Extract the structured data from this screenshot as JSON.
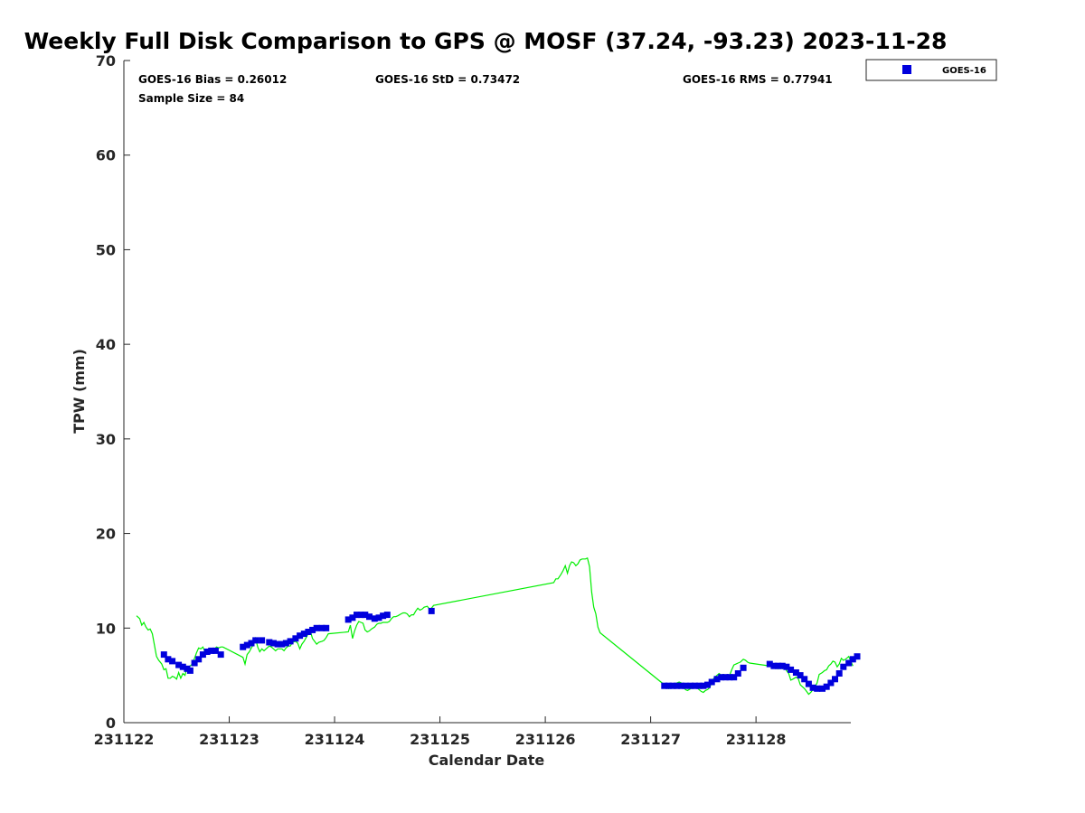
{
  "chart_data": {
    "type": "scatter",
    "title": "Weekly Full Disk Comparison to GPS @ MOSF (37.24, -93.23) 2023-11-28",
    "xlabel": "Calendar Date",
    "ylabel": "TPW (mm)",
    "xlim": [
      231122,
      231128.9
    ],
    "ylim": [
      0,
      70
    ],
    "yticks": [
      "0",
      "10",
      "20",
      "30",
      "40",
      "50",
      "60",
      "70"
    ],
    "xticks": [
      "231122",
      "231123",
      "231124",
      "231125",
      "231126",
      "231127",
      "231128"
    ],
    "grid": false,
    "legend_position": "top-right",
    "stats": {
      "bias": "GOES-16 Bias = 0.26012",
      "std": "GOES-16 StD = 0.73472",
      "rms": "GOES-16 RMS = 0.77941",
      "sample": "Sample Size = 84"
    },
    "series": [
      {
        "name": "GOES-16",
        "kind": "scatter",
        "marker": "square",
        "color": "#0000dd",
        "x": [
          231122.38,
          231122.42,
          231122.46,
          231122.52,
          231122.56,
          231122.6,
          231122.63,
          231122.67,
          231122.71,
          231122.75,
          231122.79,
          231122.83,
          231122.87,
          231122.92,
          231123.13,
          231123.17,
          231123.21,
          231123.25,
          231123.31,
          231123.38,
          231123.42,
          231123.46,
          231123.5,
          231123.54,
          231123.58,
          231123.63,
          231123.67,
          231123.71,
          231123.75,
          231123.79,
          231123.83,
          231123.88,
          231123.92,
          231124.13,
          231124.17,
          231124.21,
          231124.25,
          231124.29,
          231124.33,
          231124.38,
          231124.42,
          231124.46,
          231124.5,
          231124.92,
          231127.13,
          231127.17,
          231127.21,
          231127.25,
          231127.29,
          231127.33,
          231127.38,
          231127.42,
          231127.46,
          231127.5,
          231127.54,
          231127.58,
          231127.63,
          231127.67,
          231127.71,
          231127.75,
          231127.79,
          231127.83,
          231127.88,
          231128.13,
          231128.17,
          231128.21,
          231128.25,
          231128.29,
          231128.33,
          231128.38,
          231128.42,
          231128.46,
          231128.5,
          231128.54,
          231128.58,
          231128.63,
          231128.67,
          231128.71,
          231128.75,
          231128.79,
          231128.83,
          231128.88,
          231128.92,
          231128.96
        ],
        "y": [
          7.2,
          6.7,
          6.5,
          6.1,
          5.9,
          5.7,
          5.5,
          6.3,
          6.7,
          7.2,
          7.5,
          7.6,
          7.6,
          7.2,
          8.0,
          8.2,
          8.4,
          8.7,
          8.7,
          8.5,
          8.4,
          8.3,
          8.3,
          8.4,
          8.6,
          8.9,
          9.2,
          9.4,
          9.6,
          9.8,
          10.0,
          10.0,
          10.0,
          10.9,
          11.1,
          11.4,
          11.4,
          11.4,
          11.2,
          11.0,
          11.1,
          11.3,
          11.4,
          11.8,
          3.9,
          3.9,
          3.9,
          3.9,
          3.9,
          3.9,
          3.9,
          3.9,
          3.9,
          3.9,
          4.0,
          4.3,
          4.6,
          4.8,
          4.8,
          4.8,
          4.8,
          5.2,
          5.8,
          6.2,
          6.0,
          6.0,
          6.0,
          5.9,
          5.6,
          5.3,
          5.0,
          4.6,
          4.1,
          3.7,
          3.6,
          3.6,
          3.8,
          4.2,
          4.6,
          5.2,
          5.9,
          6.3,
          6.7,
          7.0
        ]
      },
      {
        "name": "",
        "kind": "line",
        "color": "#00ee00",
        "x": [
          231122.12,
          231122.15,
          231122.17,
          231122.19,
          231122.21,
          231122.23,
          231122.25,
          231122.27,
          231122.29,
          231122.31,
          231122.33,
          231122.36,
          231122.38,
          231122.4,
          231122.42,
          231122.44,
          231122.46,
          231122.48,
          231122.5,
          231122.52,
          231122.54,
          231122.56,
          231122.58,
          231122.6,
          231122.63,
          231122.65,
          231122.67,
          231122.69,
          231122.71,
          231122.73,
          231122.75,
          231122.77,
          231122.79,
          231122.81,
          231122.83,
          231122.85,
          231122.88,
          231122.9,
          231122.92,
          231122.94,
          231123.13,
          231123.15,
          231123.17,
          231123.19,
          231123.21,
          231123.23,
          231123.25,
          231123.27,
          231123.29,
          231123.31,
          231123.33,
          231123.35,
          231123.38,
          231123.4,
          231123.42,
          231123.44,
          231123.46,
          231123.48,
          231123.5,
          231123.52,
          231123.54,
          231123.56,
          231123.58,
          231123.6,
          231123.63,
          231123.65,
          231123.67,
          231123.69,
          231123.71,
          231123.73,
          231123.75,
          231123.77,
          231123.79,
          231123.81,
          231123.83,
          231123.85,
          231123.88,
          231123.9,
          231123.92,
          231123.94,
          231124.13,
          231124.15,
          231124.17,
          231124.19,
          231124.21,
          231124.23,
          231124.25,
          231124.27,
          231124.29,
          231124.31,
          231124.33,
          231124.35,
          231124.38,
          231124.4,
          231124.42,
          231124.44,
          231124.46,
          231124.48,
          231124.5,
          231124.52,
          231124.54,
          231124.56,
          231124.58,
          231124.6,
          231124.63,
          231124.65,
          231124.67,
          231124.69,
          231124.71,
          231124.73,
          231124.75,
          231124.77,
          231124.79,
          231124.81,
          231124.83,
          231124.85,
          231124.88,
          231124.9,
          231124.92,
          231124.94,
          231126.08,
          231126.1,
          231126.12,
          231126.15,
          231126.17,
          231126.19,
          231126.21,
          231126.23,
          231126.25,
          231126.27,
          231126.29,
          231126.31,
          231126.33,
          231126.35,
          231126.38,
          231126.4,
          231126.42,
          231126.44,
          231126.46,
          231126.48,
          231126.5,
          231126.52,
          231127.13,
          231127.15,
          231127.17,
          231127.19,
          231127.21,
          231127.23,
          231127.25,
          231127.27,
          231127.29,
          231127.31,
          231127.33,
          231127.35,
          231127.38,
          231127.4,
          231127.42,
          231127.44,
          231127.46,
          231127.48,
          231127.5,
          231127.52,
          231127.54,
          231127.56,
          231127.58,
          231127.6,
          231127.63,
          231127.65,
          231127.67,
          231127.69,
          231127.71,
          231127.73,
          231127.75,
          231127.77,
          231127.79,
          231127.81,
          231127.83,
          231127.85,
          231127.88,
          231127.9,
          231127.92,
          231127.94,
          231128.13,
          231128.15,
          231128.17,
          231128.19,
          231128.21,
          231128.23,
          231128.25,
          231128.27,
          231128.29,
          231128.31,
          231128.33,
          231128.35,
          231128.38,
          231128.4,
          231128.42,
          231128.44,
          231128.46,
          231128.48,
          231128.5,
          231128.52,
          231128.54,
          231128.56,
          231128.58,
          231128.6,
          231128.63,
          231128.65,
          231128.67,
          231128.69,
          231128.71,
          231128.73,
          231128.75,
          231128.77,
          231128.79,
          231128.81,
          231128.83,
          231128.85,
          231128.88,
          231128.9,
          231128.92
        ],
        "y": [
          11.3,
          11.0,
          10.3,
          10.6,
          10.1,
          9.8,
          9.9,
          9.4,
          8.2,
          7.0,
          6.6,
          6.2,
          5.6,
          5.7,
          4.7,
          4.7,
          4.9,
          4.8,
          4.6,
          5.3,
          4.7,
          5.2,
          5.0,
          5.9,
          6.0,
          6.2,
          6.8,
          7.4,
          7.9,
          7.8,
          8.0,
          7.5,
          7.7,
          7.6,
          7.5,
          7.7,
          8.0,
          7.9,
          8.0,
          8.0,
          6.9,
          6.2,
          7.2,
          7.5,
          7.9,
          8.3,
          8.9,
          8.0,
          7.5,
          7.8,
          7.6,
          7.8,
          8.1,
          8.0,
          7.8,
          7.6,
          7.8,
          7.8,
          7.8,
          7.6,
          7.9,
          8.1,
          8.1,
          8.5,
          8.6,
          8.4,
          7.8,
          8.3,
          8.6,
          9.0,
          9.4,
          9.7,
          8.9,
          8.6,
          8.3,
          8.5,
          8.6,
          8.7,
          9.0,
          9.4,
          9.6,
          10.3,
          8.9,
          9.7,
          10.3,
          10.7,
          10.6,
          10.5,
          9.8,
          9.6,
          9.7,
          9.9,
          10.1,
          10.4,
          10.5,
          10.5,
          10.6,
          10.6,
          10.6,
          10.7,
          11.0,
          11.2,
          11.2,
          11.3,
          11.5,
          11.6,
          11.6,
          11.5,
          11.2,
          11.4,
          11.4,
          11.8,
          12.1,
          11.9,
          12.0,
          12.2,
          12.3,
          12.0,
          12.1,
          12.4,
          14.8,
          15.2,
          15.2,
          15.7,
          16.1,
          16.6,
          15.8,
          16.6,
          17.0,
          16.9,
          16.6,
          16.8,
          17.2,
          17.3,
          17.3,
          17.4,
          16.5,
          13.8,
          12.2,
          11.5,
          10.1,
          9.5,
          4.0,
          3.7,
          3.6,
          3.7,
          3.9,
          4.0,
          4.2,
          4.3,
          4.2,
          3.8,
          3.5,
          3.4,
          3.6,
          3.7,
          3.9,
          3.7,
          3.5,
          3.3,
          3.2,
          3.4,
          3.5,
          3.7,
          4.3,
          4.7,
          5.0,
          5.2,
          5.0,
          5.1,
          5.0,
          5.1,
          5.0,
          5.6,
          6.1,
          6.2,
          6.3,
          6.4,
          6.7,
          6.6,
          6.4,
          6.3,
          6.0,
          6.2,
          6.1,
          6.0,
          5.7,
          5.9,
          5.7,
          5.9,
          5.5,
          5.2,
          4.5,
          4.6,
          4.8,
          4.7,
          4.0,
          3.8,
          3.6,
          3.3,
          3.0,
          3.2,
          3.5,
          3.8,
          4.2,
          5.1,
          5.3,
          5.5,
          5.6,
          6.0,
          6.2,
          6.5,
          6.4,
          5.9,
          6.2,
          6.8,
          6.6,
          6.7,
          7.0,
          6.5,
          6.0
        ]
      }
    ]
  }
}
